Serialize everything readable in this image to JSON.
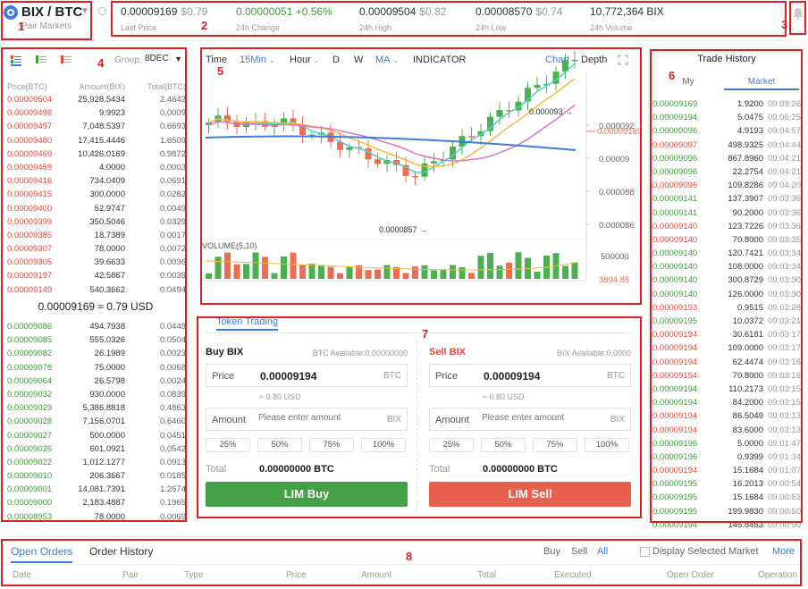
{
  "header": {
    "pair": "BIX / BTC",
    "pair_markets": "Pair Markets",
    "stats": [
      {
        "value": "0.00009169",
        "sub": "$0.79",
        "label": "Last Price",
        "color": "#333333"
      },
      {
        "value": "0.00000051 +0.56%",
        "sub": "",
        "label": "24h Change",
        "color": "#3f9c3a"
      },
      {
        "value": "0.00009504",
        "sub": "$0.82",
        "label": "24h High",
        "color": "#333333"
      },
      {
        "value": "0.00008570",
        "sub": "$0.74",
        "label": "24h Low",
        "color": "#333333"
      },
      {
        "value": "10,772,364 BIX",
        "sub": "",
        "label": "24h Volume",
        "color": "#333333"
      }
    ]
  },
  "region_numbers": [
    "1",
    "2",
    "3",
    "4",
    "5",
    "6",
    "7",
    "8"
  ],
  "orderbook": {
    "group_label": "Group:",
    "group_value": "8DEC",
    "headers": [
      "Price(BTC)",
      "Amount(BIX)",
      "Total(BTC)"
    ],
    "asks": [
      [
        "0.00009504",
        "25,928.5434",
        "2.4642"
      ],
      [
        "0.00009498",
        "9.9923",
        "0.0009"
      ],
      [
        "0.00009497",
        "7,048.5397",
        "0.6693"
      ],
      [
        "0.00009480",
        "17,415.4446",
        "1.6509"
      ],
      [
        "0.00009469",
        "10,426.0169",
        "0.9872"
      ],
      [
        "0.00009459",
        "4.0000",
        "0.0003"
      ],
      [
        "0.00009416",
        "734.0409",
        "0.0691"
      ],
      [
        "0.00009415",
        "300.0000",
        "0.0282"
      ],
      [
        "0.00009400",
        "52.9747",
        "0.0049"
      ],
      [
        "0.00009399",
        "350.5046",
        "0.0329"
      ],
      [
        "0.00009385",
        "18.7389",
        "0.0017"
      ],
      [
        "0.00009307",
        "78.0000",
        "0.0072"
      ],
      [
        "0.00009305",
        "39.6633",
        "0.0036"
      ],
      [
        "0.00009197",
        "42.5867",
        "0.0039"
      ],
      [
        "0.00009149",
        "540.3662",
        "0.0494"
      ]
    ],
    "mid_price": "0.00009169 ≈ 0.79 USD",
    "bids": [
      [
        "0.00009086",
        "494.7938",
        "0.0449"
      ],
      [
        "0.00009085",
        "555.0326",
        "0.0504"
      ],
      [
        "0.00009082",
        "26.1989",
        "0.0023"
      ],
      [
        "0.00009076",
        "75.0000",
        "0.0068"
      ],
      [
        "0.00009064",
        "26.5798",
        "0.0024"
      ],
      [
        "0.00009032",
        "930.0000",
        "0.0839"
      ],
      [
        "0.00009029",
        "5,386.8818",
        "0.4863"
      ],
      [
        "0.00009028",
        "7,156.0701",
        "0.6460"
      ],
      [
        "0.00009027",
        "500.0000",
        "0.0451"
      ],
      [
        "0.00009026",
        "601.0921",
        "0.0542"
      ],
      [
        "0.00009022",
        "1,012.1277",
        "0.0913"
      ],
      [
        "0.00009010",
        "206.3667",
        "0.0185"
      ],
      [
        "0.00009001",
        "14,081.7391",
        "1.2674"
      ],
      [
        "0.00009000",
        "2,183.4887",
        "0.1965"
      ],
      [
        "0.00008953",
        "78.0000",
        "0.0069"
      ]
    ]
  },
  "chart": {
    "toolbar": {
      "time": "Time",
      "interval": "15Min",
      "hour": "Hour",
      "d": "D",
      "w": "W",
      "ma": "MA",
      "indicator": "INDICATOR",
      "chart": "Chart",
      "depth": "Depth"
    },
    "price_ticks": [
      "0.000092",
      "0.00009",
      "0.000088",
      "0.000086"
    ],
    "current_price": "0.00009169",
    "high_marker": "0.000093",
    "low_marker": "0.0000857",
    "volume_label": "VOLUME(5,10)",
    "volume_tick": "500000",
    "volume_current": "3894.85",
    "colors": {
      "up": "#4caf50",
      "down": "#ef6c50",
      "ma_yellow": "#f5b83d",
      "ma_cyan": "#4dd0c8",
      "ma_blue": "#3b7dd8",
      "ma_pink": "#e070c8"
    }
  },
  "trade_history": {
    "title": "Trade History",
    "tabs": [
      "My",
      "Market"
    ],
    "rows": [
      [
        "0.00009169",
        "1.9200",
        "09:09:26",
        "g"
      ],
      [
        "0.00009194",
        "5.0475",
        "09:06:25",
        "g"
      ],
      [
        "0.00009096",
        "4.9193",
        "09:04:57",
        "g"
      ],
      [
        "0.00009097",
        "498.9325",
        "09:04:44",
        "r"
      ],
      [
        "0.00009096",
        "867.8960",
        "09:04:21",
        "g"
      ],
      [
        "0.00009096",
        "22.2754",
        "09:04:21",
        "g"
      ],
      [
        "0.00009096",
        "109.8286",
        "09:04:20",
        "r"
      ],
      [
        "0.00009141",
        "137.3907",
        "09:03:36",
        "g"
      ],
      [
        "0.00009141",
        "90.2000",
        "09:03:36",
        "g"
      ],
      [
        "0.00009140",
        "123.7226",
        "09:03:36",
        "r"
      ],
      [
        "0.00009140",
        "70.8000",
        "09:03:35",
        "r"
      ],
      [
        "0.00009140",
        "120.7421",
        "09:03:34",
        "g"
      ],
      [
        "0.00009140",
        "108.0000",
        "09:03:34",
        "g"
      ],
      [
        "0.00009140",
        "300.8729",
        "09:03:30",
        "g"
      ],
      [
        "0.00009140",
        "126.0000",
        "09:03:30",
        "g"
      ],
      [
        "0.00009193",
        "0.9515",
        "09:03:28",
        "r"
      ],
      [
        "0.00009195",
        "10.0372",
        "09:03:21",
        "g"
      ],
      [
        "0.00009194",
        "30.6181",
        "09:03:17",
        "r"
      ],
      [
        "0.00009194",
        "109.0000",
        "09:03:17",
        "r"
      ],
      [
        "0.00009194",
        "62.4474",
        "09:03:16",
        "r"
      ],
      [
        "0.00009194",
        "70.8000",
        "09:03:16",
        "r"
      ],
      [
        "0.00009194",
        "110.2173",
        "09:03:15",
        "g"
      ],
      [
        "0.00009194",
        "84.2000",
        "09:03:15",
        "g"
      ],
      [
        "0.00009194",
        "86.5049",
        "09:03:13",
        "r"
      ],
      [
        "0.00009194",
        "83.6000",
        "09:03:13",
        "r"
      ],
      [
        "0.00009196",
        "5.0000",
        "09:01:47",
        "g"
      ],
      [
        "0.00009196",
        "0.9399",
        "09:01:34",
        "g"
      ],
      [
        "0.00009194",
        "15.1684",
        "09:01:07",
        "r"
      ],
      [
        "0.00009195",
        "16.2013",
        "09:00:54",
        "g"
      ],
      [
        "0.00009195",
        "15.1684",
        "09:00:52",
        "g"
      ],
      [
        "0.00009195",
        "199.9830",
        "09:00:50",
        "g"
      ],
      [
        "0.00009194",
        "145.8453",
        "09:00:50",
        "g"
      ]
    ]
  },
  "trade": {
    "tab": "Token Trading",
    "buy": {
      "title": "Buy BIX",
      "available": "BTC Available:0.00000000",
      "price_label": "Price",
      "price_value": "0.00009194",
      "price_unit": "BTC",
      "usd": "≈ 0.80 USD",
      "amount_label": "Amount",
      "amount_placeholder": "Please enter amount",
      "amount_unit": "BIX",
      "pcts": [
        "25%",
        "50%",
        "75%",
        "100%"
      ],
      "total_label": "Total",
      "total_value": "0.00000000 BTC",
      "button": "LIM Buy"
    },
    "sell": {
      "title": "Sell BIX",
      "available": "BIX Available:0.0000",
      "price_label": "Price",
      "price_value": "0.00009194",
      "price_unit": "BTC",
      "usd": "≈ 0.80 USD",
      "amount_label": "Amount",
      "amount_placeholder": "Please enter amount",
      "amount_unit": "BIX",
      "pcts": [
        "25%",
        "50%",
        "75%",
        "100%"
      ],
      "total_label": "Total",
      "total_value": "0.00000000 BTC",
      "button": "LIM Sell"
    }
  },
  "orders": {
    "tabs": [
      "Open Orders",
      "Order History"
    ],
    "filters": [
      "Buy",
      "Sell",
      "All"
    ],
    "display_selected": "Display Selected Market",
    "more": "More",
    "columns": [
      "Date",
      "Pair",
      "Type",
      "Price",
      "Amount",
      "Total",
      "Executed",
      "Open Order",
      "Operation"
    ]
  }
}
